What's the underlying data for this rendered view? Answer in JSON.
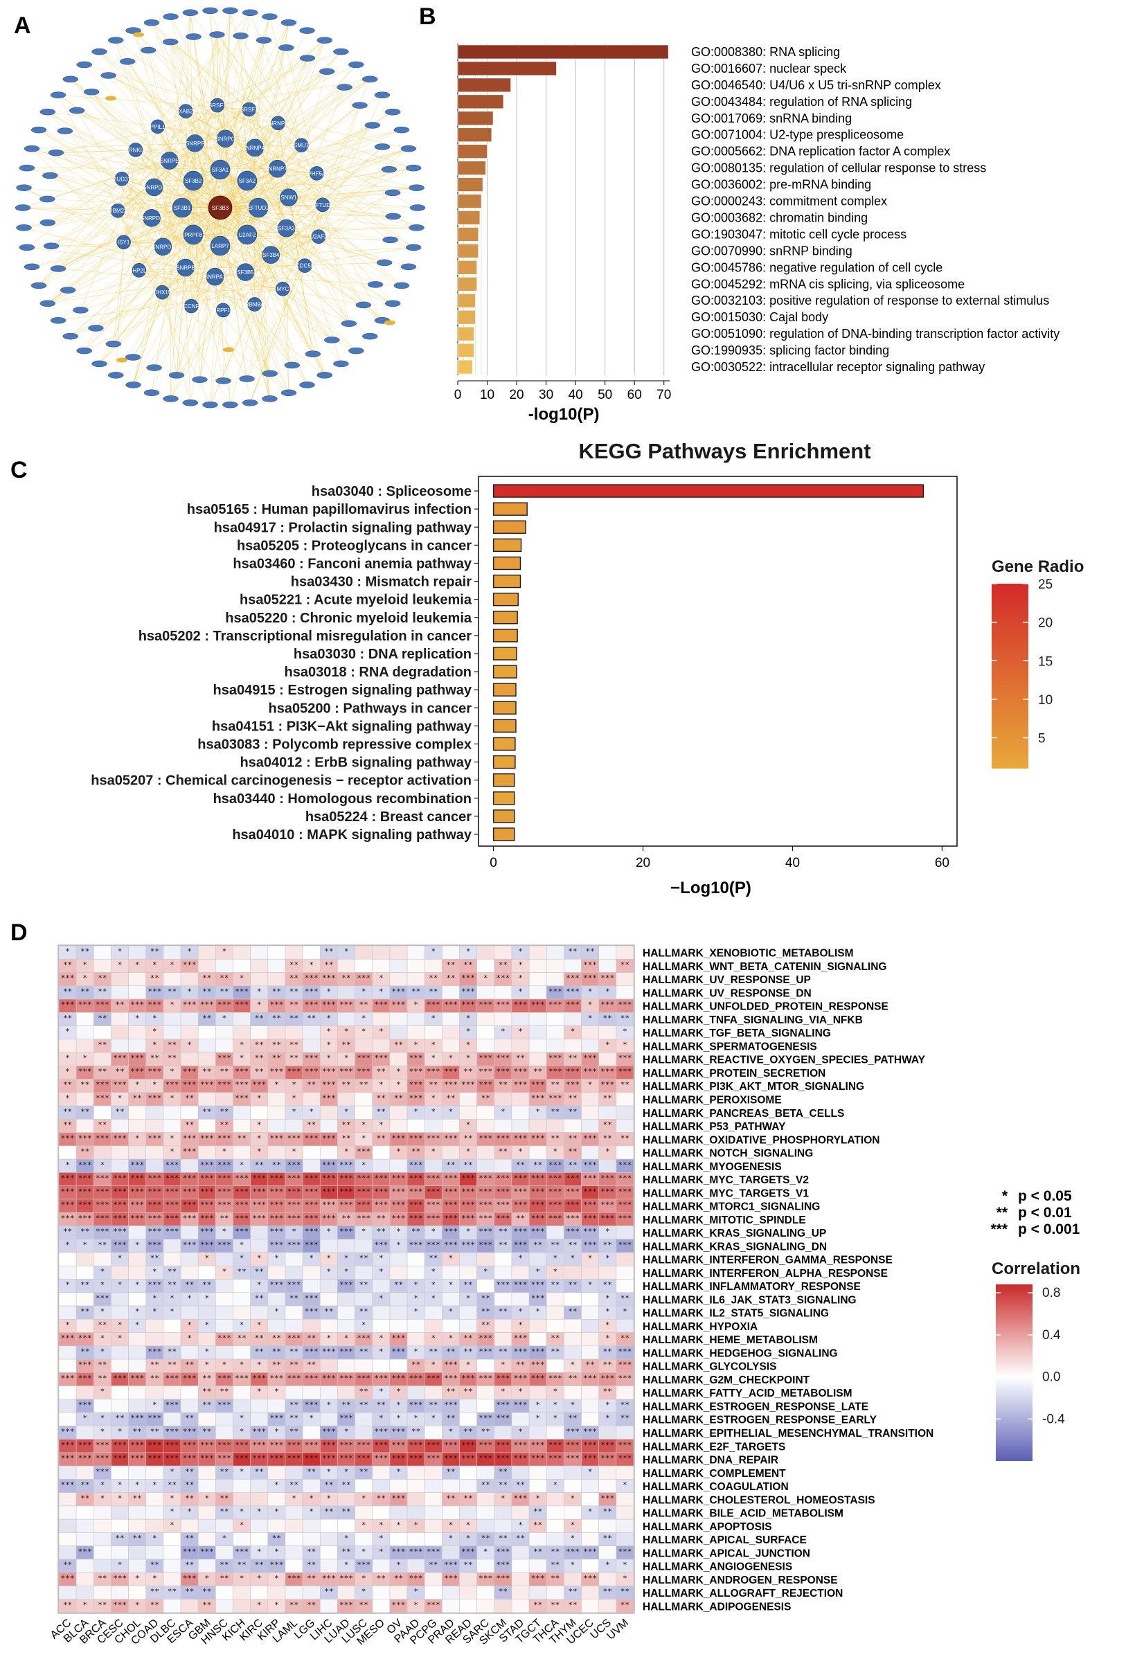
{
  "panel_labels": [
    "A",
    "B",
    "C",
    "D"
  ],
  "network": {
    "center_node": "SF3B3",
    "hub_nodes": [
      "EFTUD2",
      "U2AF2",
      "LARP7",
      "PRPF8",
      "SF3B1",
      "SF3B2",
      "SF3A1",
      "SF3A2",
      "SF3A3",
      "SF3B4",
      "SF3B5",
      "SNRPA1",
      "SNRPB",
      "SNRPD1",
      "SNRPD2",
      "SNRPD3",
      "SNRPE",
      "SNRPF",
      "SNRPG",
      "SNRNP40",
      "SNRNP70",
      "SNW1",
      "CDC5L",
      "MYC",
      "RBM8A",
      "PRPF19",
      "CCNF",
      "DHX15",
      "NHP2L1",
      "ISY1",
      "RBM22",
      "BUD31",
      "CRNKL1",
      "PPIL1",
      "XAB2",
      "SRSF1",
      "SRSF2",
      "HNRNPA1",
      "SMU1",
      "PHF5A"
    ]
  },
  "chart_data": [
    {
      "panel": "B",
      "type": "bar",
      "orientation": "horizontal",
      "xlabel": "-log10(P)",
      "xlim": [
        0,
        75
      ],
      "xticks": [
        0,
        10,
        20,
        30,
        40,
        50,
        60,
        70
      ],
      "grid": true,
      "categories": [
        "GO:0008380: RNA splicing",
        "GO:0016607: nuclear speck",
        "GO:0046540: U4/U6 x U5 tri-snRNP complex",
        "GO:0043484: regulation of RNA splicing",
        "GO:0017069: snRNA binding",
        "GO:0071004: U2-type prespliceosome",
        "GO:0005662: DNA replication factor A complex",
        "GO:0080135: regulation of cellular response to stress",
        "GO:0036002: pre-mRNA binding",
        "GO:0000243: commitment complex",
        "GO:0003682: chromatin binding",
        "GO:1903047: mitotic cell cycle process",
        "GO:0070990: snRNP binding",
        "GO:0045786: negative regulation of cell cycle",
        "GO:0045292: mRNA cis splicing, via spliceosome",
        "GO:0032103: positive regulation of response to external stimulus",
        "GO:0015030: Cajal body",
        "GO:0051090: regulation of DNA-binding transcription factor activity",
        "GO:1990935: splicing factor binding",
        "GO:0030522: intracellular receptor signaling pathway"
      ],
      "values": [
        71.5,
        33.5,
        18.0,
        15.5,
        12.0,
        11.5,
        10.0,
        9.5,
        8.5,
        8.0,
        7.5,
        7.0,
        7.0,
        6.5,
        6.5,
        6.0,
        6.0,
        5.5,
        5.5,
        5.0
      ]
    },
    {
      "panel": "C",
      "type": "bar",
      "orientation": "horizontal",
      "title": "KEGG Pathways Enrichment",
      "xlabel": "−Log10(P)",
      "xlim": [
        -2,
        62
      ],
      "xticks": [
        0,
        20,
        40,
        60
      ],
      "categories": [
        "hsa03040 : Spliceosome",
        "hsa05165 : Human papillomavirus infection",
        "hsa04917 : Prolactin signaling pathway",
        "hsa05205 : Proteoglycans in cancer",
        "hsa03460 : Fanconi anemia pathway",
        "hsa03430 : Mismatch repair",
        "hsa05221 : Acute myeloid leukemia",
        "hsa05220 : Chronic myeloid leukemia",
        "hsa05202 : Transcriptional misregulation in cancer",
        "hsa03030 : DNA replication",
        "hsa03018 : RNA degradation",
        "hsa04915 : Estrogen signaling pathway",
        "hsa05200 : Pathways in cancer",
        "hsa04151 : PI3K−Akt signaling pathway",
        "hsa03083 : Polycomb repressive complex",
        "hsa04012 : ErbB signaling pathway",
        "hsa05207 : Chemical carcinogenesis − receptor activation",
        "hsa03440 : Homologous recombination",
        "hsa05224 : Breast cancer",
        "hsa04010 : MAPK signaling pathway"
      ],
      "values": [
        57.5,
        4.5,
        4.3,
        3.7,
        3.6,
        3.6,
        3.3,
        3.2,
        3.2,
        3.1,
        3.1,
        3.0,
        3.0,
        3.0,
        2.9,
        2.9,
        2.8,
        2.8,
        2.8,
        2.8
      ],
      "gene_ratio": [
        25,
        4,
        4,
        3,
        3,
        3,
        3,
        3,
        3,
        2,
        2,
        3,
        3,
        3,
        2,
        2,
        3,
        2,
        3,
        3
      ],
      "legend": {
        "title": "Gene Radio",
        "ticks": [
          5,
          10,
          15,
          20,
          25
        ],
        "range": [
          1,
          25
        ],
        "colors": [
          "#e8a93a",
          "#d32a2a"
        ]
      }
    },
    {
      "panel": "D",
      "type": "heatmap",
      "columns": [
        "ACC",
        "BLCA",
        "BRCA",
        "CESC",
        "CHOL",
        "COAD",
        "DLBC",
        "ESCA",
        "GBM",
        "HNSC",
        "KICH",
        "KIRC",
        "KIRP",
        "LAML",
        "LGG",
        "LIHC",
        "LUAD",
        "LUSC",
        "MESO",
        "OV",
        "PAAD",
        "PCPG",
        "PRAD",
        "READ",
        "SARC",
        "SKCM",
        "STAD",
        "TGCT",
        "THCA",
        "THYM",
        "UCEC",
        "UCS",
        "UVM"
      ],
      "rows": [
        "HALLMARK_XENOBIOTIC_METABOLISM",
        "HALLMARK_WNT_BETA_CATENIN_SIGNALING",
        "HALLMARK_UV_RESPONSE_UP",
        "HALLMARK_UV_RESPONSE_DN",
        "HALLMARK_UNFOLDED_PROTEIN_RESPONSE",
        "HALLMARK_TNFA_SIGNALING_VIA_NFKB",
        "HALLMARK_TGF_BETA_SIGNALING",
        "HALLMARK_SPERMATOGENESIS",
        "HALLMARK_REACTIVE_OXYGEN_SPECIES_PATHWAY",
        "HALLMARK_PROTEIN_SECRETION",
        "HALLMARK_PI3K_AKT_MTOR_SIGNALING",
        "HALLMARK_PEROXISOME",
        "HALLMARK_PANCREAS_BETA_CELLS",
        "HALLMARK_P53_PATHWAY",
        "HALLMARK_OXIDATIVE_PHOSPHORYLATION",
        "HALLMARK_NOTCH_SIGNALING",
        "HALLMARK_MYOGENESIS",
        "HALLMARK_MYC_TARGETS_V2",
        "HALLMARK_MYC_TARGETS_V1",
        "HALLMARK_MTORC1_SIGNALING",
        "HALLMARK_MITOTIC_SPINDLE",
        "HALLMARK_KRAS_SIGNALING_UP",
        "HALLMARK_KRAS_SIGNALING_DN",
        "HALLMARK_INTERFERON_GAMMA_RESPONSE",
        "HALLMARK_INTERFERON_ALPHA_RESPONSE",
        "HALLMARK_INFLAMMATORY_RESPONSE",
        "HALLMARK_IL6_JAK_STAT3_SIGNALING",
        "HALLMARK_IL2_STAT5_SIGNALING",
        "HALLMARK_HYPOXIA",
        "HALLMARK_HEME_METABOLISM",
        "HALLMARK_HEDGEHOG_SIGNALING",
        "HALLMARK_GLYCOLYSIS",
        "HALLMARK_G2M_CHECKPOINT",
        "HALLMARK_FATTY_ACID_METABOLISM",
        "HALLMARK_ESTROGEN_RESPONSE_LATE",
        "HALLMARK_ESTROGEN_RESPONSE_EARLY",
        "HALLMARK_EPITHELIAL_MESENCHYMAL_TRANSITION",
        "HALLMARK_E2F_TARGETS",
        "HALLMARK_DNA_REPAIR",
        "HALLMARK_COMPLEMENT",
        "HALLMARK_COAGULATION",
        "HALLMARK_CHOLESTEROL_HOMEOSTASIS",
        "HALLMARK_BILE_ACID_METABOLISM",
        "HALLMARK_APOPTOSIS",
        "HALLMARK_APICAL_SURFACE",
        "HALLMARK_APICAL_JUNCTION",
        "HALLMARK_ANGIOGENESIS",
        "HALLMARK_ANDROGEN_RESPONSE",
        "HALLMARK_ALLOGRAFT_REJECTION",
        "HALLMARK_ADIPOGENESIS"
      ],
      "row_mean_correlation": [
        -0.05,
        0.12,
        0.22,
        -0.22,
        0.4,
        -0.12,
        0.02,
        0.08,
        0.28,
        0.38,
        0.36,
        0.18,
        -0.1,
        0.1,
        0.32,
        0.14,
        -0.28,
        0.6,
        0.62,
        0.52,
        0.48,
        -0.26,
        -0.3,
        -0.04,
        -0.05,
        -0.2,
        -0.15,
        -0.12,
        0.04,
        0.2,
        -0.24,
        0.16,
        0.46,
        0.06,
        -0.2,
        -0.18,
        -0.22,
        0.64,
        0.66,
        -0.14,
        -0.16,
        0.22,
        -0.1,
        0.02,
        -0.12,
        -0.22,
        -0.14,
        0.26,
        -0.12,
        0.14
      ],
      "significance_legend": [
        {
          "mark": "*",
          "text": "p < 0.05"
        },
        {
          "mark": "**",
          "text": "p < 0.01"
        },
        {
          "mark": "***",
          "text": "p < 0.001"
        }
      ],
      "legend": {
        "title": "Correlation",
        "ticks": [
          0.8,
          0.4,
          0.0,
          -0.4
        ],
        "range": [
          -0.8,
          0.88
        ],
        "colors": [
          "#5b5fb5",
          "#ffffff",
          "#c92a2a"
        ]
      }
    }
  ]
}
